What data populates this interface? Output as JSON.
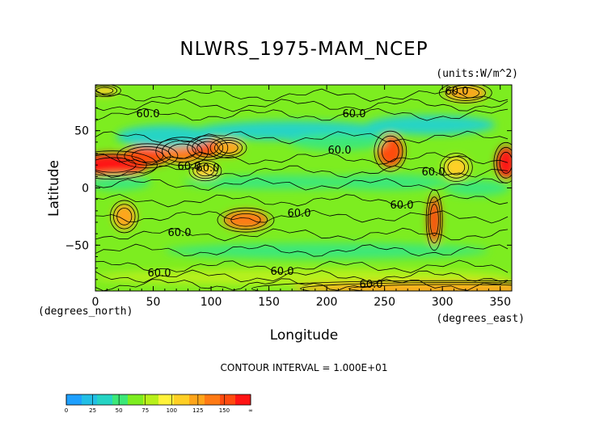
{
  "chart_data": {
    "type": "heatmap",
    "title": "NLWRS_1975-MAM_NCEP",
    "units_label": "(units:W/m^2)",
    "xlabel": "Longitude",
    "ylabel": "Latitude",
    "x_unit_label": "(degrees_east)",
    "y_unit_label": "(degrees_north)",
    "xlim": [
      0,
      360
    ],
    "ylim": [
      -90,
      90
    ],
    "x_ticks": [
      "0",
      "50",
      "100",
      "150",
      "200",
      "250",
      "300",
      "350"
    ],
    "y_ticks": [
      "50",
      "0",
      "−50"
    ],
    "contour_interval_text": "CONTOUR INTERVAL = 1.000E+01",
    "contour_labels": [
      "60.0",
      "60.0",
      "60.0",
      "60.0",
      "60.0",
      "60.0",
      "60.0",
      "60.0",
      "60.0",
      "60.0",
      "60.0",
      "60.0",
      "60.0"
    ],
    "colorbar": {
      "labels": [
        "0",
        "25",
        "50",
        "75",
        "100",
        "125",
        "150",
        "∞"
      ],
      "colors": [
        "#1ea0ff",
        "#22bfe6",
        "#25d4c4",
        "#3ce878",
        "#7ded20",
        "#b8f01a",
        "#fff23a",
        "#ffcf25",
        "#ffa51a",
        "#ff7a14",
        "#ff4b0f",
        "#ff1414"
      ]
    },
    "background_level_color": "#7ded20",
    "regions": [
      {
        "lon": 15,
        "lat": 20,
        "value": 145
      },
      {
        "lon": 45,
        "lat": 28,
        "value": 130
      },
      {
        "lon": 75,
        "lat": 32,
        "value": 115
      },
      {
        "lon": 97,
        "lat": 35,
        "value": 130
      },
      {
        "lon": 115,
        "lat": 35,
        "value": 100
      },
      {
        "lon": 95,
        "lat": 15,
        "value": 95
      },
      {
        "lon": 130,
        "lat": -28,
        "value": 120
      },
      {
        "lon": 25,
        "lat": -25,
        "value": 105
      },
      {
        "lon": 255,
        "lat": 32,
        "value": 125
      },
      {
        "lon": 293,
        "lat": -28,
        "value": 130
      },
      {
        "lon": 312,
        "lat": 18,
        "value": 95
      },
      {
        "lon": 355,
        "lat": 22,
        "value": 140
      },
      {
        "lon": 320,
        "lat": 83,
        "value": 110
      },
      {
        "lon": 8,
        "lat": 85,
        "value": 95
      },
      {
        "lon": 60,
        "lat": 45,
        "value": 35
      },
      {
        "lon": 170,
        "lat": 50,
        "value": 30
      },
      {
        "lon": 290,
        "lat": 55,
        "value": 35
      },
      {
        "lon": 210,
        "lat": 40,
        "value": 40
      },
      {
        "lon": 250,
        "lat": 5,
        "value": 40
      },
      {
        "lon": 160,
        "lat": 5,
        "value": 42
      },
      {
        "lon": 330,
        "lat": 0,
        "value": 42
      },
      {
        "lon": 20,
        "lat": 5,
        "value": 42
      },
      {
        "lon": 200,
        "lat": -55,
        "value": 45
      },
      {
        "lon": 180,
        "lat": -78,
        "value": 70
      },
      {
        "lon": 310,
        "lat": -88,
        "value": 100
      }
    ]
  }
}
